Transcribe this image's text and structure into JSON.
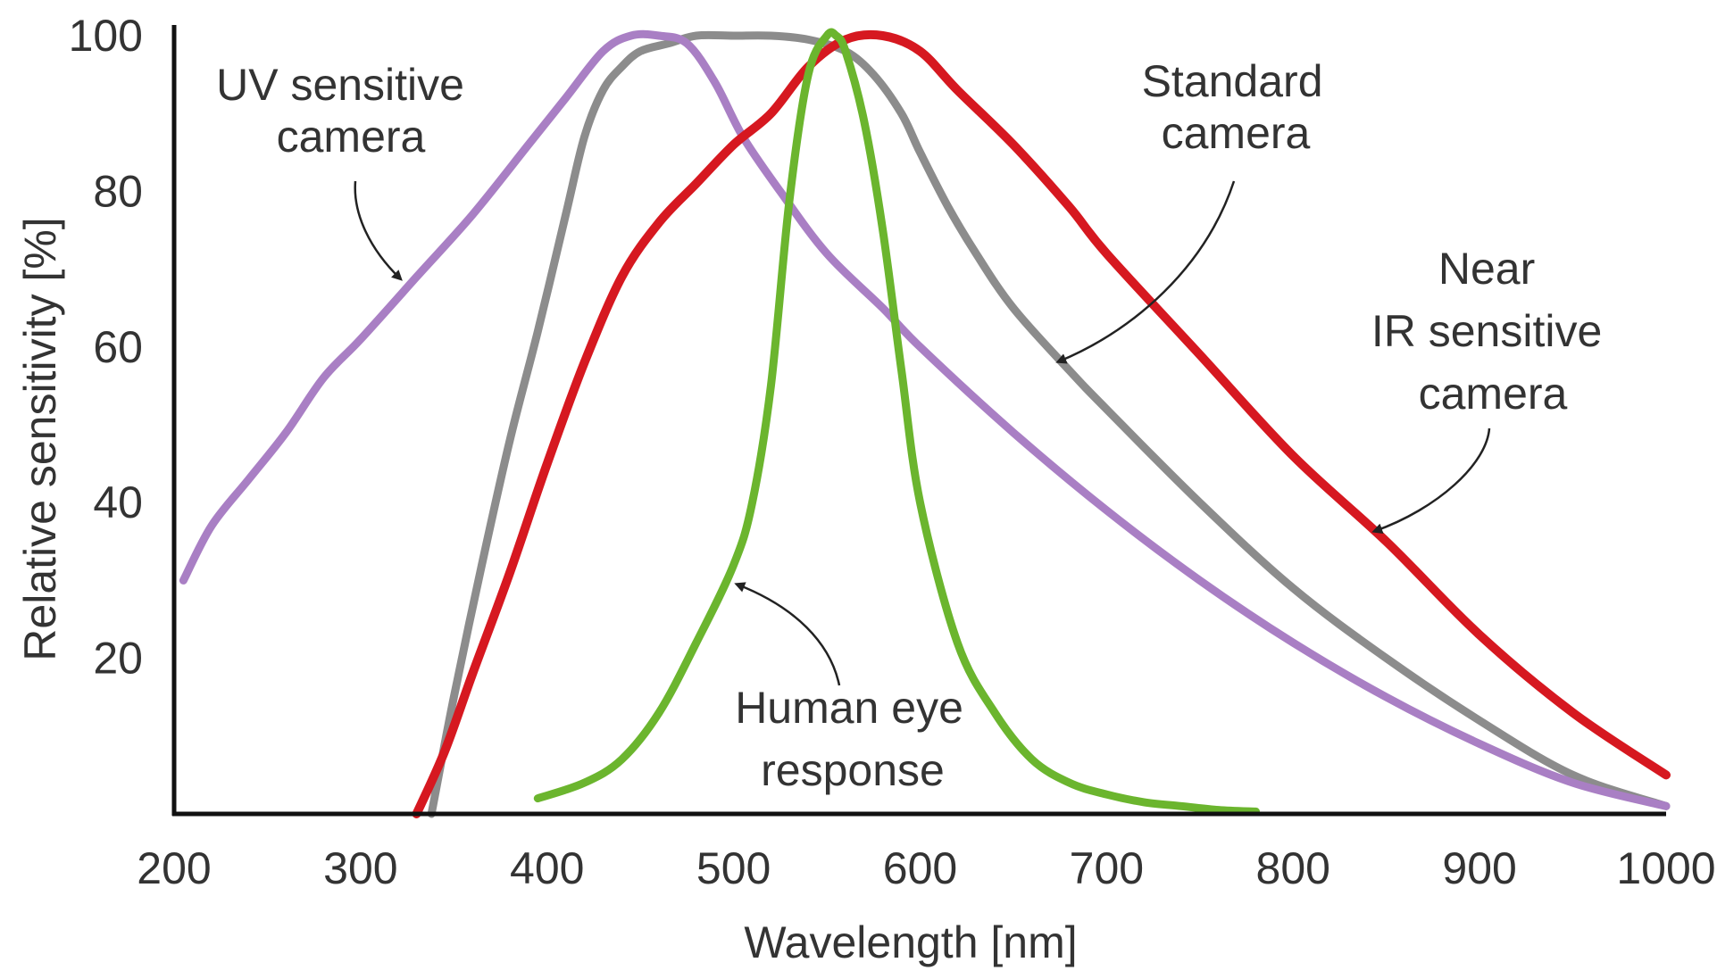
{
  "chart_data": {
    "type": "line",
    "title": "",
    "xlabel": "Wavelength [nm]",
    "ylabel": "Relative sensitivity [%]",
    "xlim": [
      200,
      1000
    ],
    "ylim": [
      0,
      100
    ],
    "x_ticks": [
      200,
      300,
      400,
      500,
      600,
      700,
      800,
      900,
      1000
    ],
    "y_ticks": [
      20,
      40,
      60,
      80,
      100
    ],
    "grid": false,
    "series": [
      {
        "name": "Standard camera",
        "color": "#8c8c8c",
        "x": [
          338,
          350,
          365,
          380,
          395,
          410,
          420,
          430,
          440,
          450,
          465,
          480,
          500,
          520,
          540,
          560,
          575,
          590,
          600,
          615,
          630,
          650,
          680,
          700,
          750,
          800,
          850,
          900,
          950,
          1000
        ],
        "y": [
          0,
          15,
          32,
          48,
          62,
          77,
          87,
          93,
          96,
          98,
          99,
          100,
          100,
          100,
          99.5,
          98,
          95,
          90,
          85,
          78,
          72,
          65,
          57,
          52,
          40,
          29,
          20,
          12,
          5,
          1
        ]
      },
      {
        "name": "UV sensitive camera",
        "color": "#a97fc4",
        "x": [
          205,
          220,
          240,
          260,
          280,
          300,
          330,
          360,
          390,
          410,
          430,
          445,
          460,
          475,
          490,
          505,
          525,
          550,
          580,
          600,
          650,
          700,
          750,
          800,
          850,
          900,
          950,
          1000
        ],
        "y": [
          30,
          37,
          43,
          49,
          56,
          61,
          69,
          77,
          86,
          92,
          98,
          100,
          100,
          99,
          94,
          87,
          80,
          72,
          65,
          60,
          49,
          39,
          30,
          22,
          15,
          9,
          4,
          1
        ]
      },
      {
        "name": "Near IR sensitive camera",
        "color": "#d61820",
        "x": [
          330,
          345,
          360,
          380,
          400,
          420,
          440,
          460,
          480,
          500,
          520,
          540,
          560,
          580,
          600,
          620,
          650,
          680,
          700,
          750,
          800,
          850,
          900,
          950,
          1000
        ],
        "y": [
          0,
          8,
          18,
          31,
          45,
          58,
          69,
          76,
          81,
          86,
          90,
          96,
          99.5,
          100,
          98,
          93,
          86,
          78,
          72,
          59,
          46,
          35,
          23,
          13,
          5
        ]
      },
      {
        "name": "Human eye response",
        "color": "#6bb52e",
        "x": [
          395,
          420,
          440,
          460,
          480,
          500,
          510,
          520,
          530,
          540,
          550,
          555,
          560,
          570,
          580,
          590,
          600,
          620,
          640,
          660,
          680,
          700,
          720,
          740,
          760,
          780
        ],
        "y": [
          2,
          4,
          7,
          13,
          22,
          32,
          40,
          55,
          79,
          95,
          100,
          100,
          98,
          89,
          75,
          57,
          40,
          22,
          13,
          7,
          4,
          2.5,
          1.5,
          1,
          0.5,
          0.3
        ]
      }
    ],
    "annotations": [
      {
        "lines": [
          "UV sensitive",
          "camera"
        ],
        "points_to": "UV sensitive camera"
      },
      {
        "lines": [
          "Standard",
          "camera"
        ],
        "points_to": "Standard camera"
      },
      {
        "lines": [
          "Near",
          "IR sensitive",
          "camera"
        ],
        "points_to": "Near IR sensitive camera"
      },
      {
        "lines": [
          "Human eye",
          "response"
        ],
        "points_to": "Human eye response"
      }
    ]
  }
}
